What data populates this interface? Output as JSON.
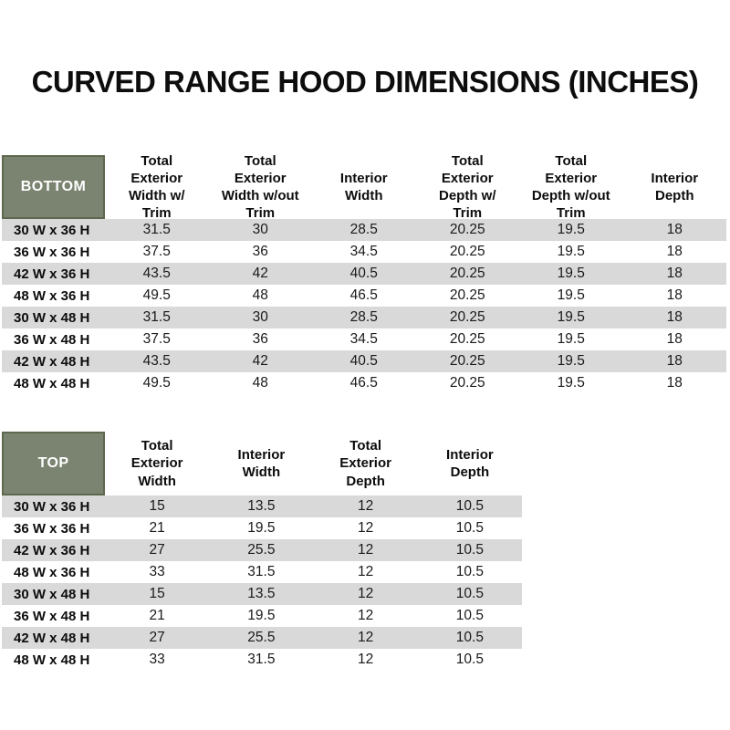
{
  "title": "CURVED RANGE HOOD DIMENSIONS (INCHES)",
  "colors": {
    "header_green": "#7B8470",
    "header_green_border": "#5E684E",
    "stripe_gray": "#D9D9D9",
    "text": "#111111",
    "background": "#FFFFFF"
  },
  "chart_data": [
    {
      "type": "table",
      "id": "bottom",
      "corner_label": "BOTTOM",
      "columns": [
        "Total Exterior Width w/ Trim",
        "Total Exterior Width w/out Trim",
        "Interior Width",
        "Total Exterior Depth w/ Trim",
        "Total Exterior Depth w/out Trim",
        "Interior Depth"
      ],
      "rows": [
        {
          "label": "30 W x 36 H",
          "values": [
            "31.5",
            "30",
            "28.5",
            "20.25",
            "19.5",
            "18"
          ]
        },
        {
          "label": "36 W x 36 H",
          "values": [
            "37.5",
            "36",
            "34.5",
            "20.25",
            "19.5",
            "18"
          ]
        },
        {
          "label": "42 W x 36 H",
          "values": [
            "43.5",
            "42",
            "40.5",
            "20.25",
            "19.5",
            "18"
          ]
        },
        {
          "label": "48 W x 36 H",
          "values": [
            "49.5",
            "48",
            "46.5",
            "20.25",
            "19.5",
            "18"
          ]
        },
        {
          "label": "30 W x 48 H",
          "values": [
            "31.5",
            "30",
            "28.5",
            "20.25",
            "19.5",
            "18"
          ]
        },
        {
          "label": "36 W x 48 H",
          "values": [
            "37.5",
            "36",
            "34.5",
            "20.25",
            "19.5",
            "18"
          ]
        },
        {
          "label": "42 W x 48 H",
          "values": [
            "43.5",
            "42",
            "40.5",
            "20.25",
            "19.5",
            "18"
          ]
        },
        {
          "label": "48 W x 48 H",
          "values": [
            "49.5",
            "48",
            "46.5",
            "20.25",
            "19.5",
            "18"
          ]
        }
      ],
      "layout": {
        "stripe_start": "gray",
        "grid_lines": false
      }
    },
    {
      "type": "table",
      "id": "top",
      "corner_label": "TOP",
      "columns": [
        "Total Exterior Width",
        "Interior Width",
        "Total Exterior Depth",
        "Interior Depth"
      ],
      "rows": [
        {
          "label": "30 W x 36 H",
          "values": [
            "15",
            "13.5",
            "12",
            "10.5"
          ]
        },
        {
          "label": "36 W x 36 H",
          "values": [
            "21",
            "19.5",
            "12",
            "10.5"
          ]
        },
        {
          "label": "42 W x 36 H",
          "values": [
            "27",
            "25.5",
            "12",
            "10.5"
          ]
        },
        {
          "label": "48 W x 36 H",
          "values": [
            "33",
            "31.5",
            "12",
            "10.5"
          ]
        },
        {
          "label": "30 W x 48 H",
          "values": [
            "15",
            "13.5",
            "12",
            "10.5"
          ]
        },
        {
          "label": "36 W x 48 H",
          "values": [
            "21",
            "19.5",
            "12",
            "10.5"
          ]
        },
        {
          "label": "42 W x 48 H",
          "values": [
            "27",
            "25.5",
            "12",
            "10.5"
          ]
        },
        {
          "label": "48 W x 48 H",
          "values": [
            "33",
            "31.5",
            "12",
            "10.5"
          ]
        }
      ],
      "layout": {
        "stripe_start": "gray",
        "grid_lines": false
      }
    }
  ]
}
